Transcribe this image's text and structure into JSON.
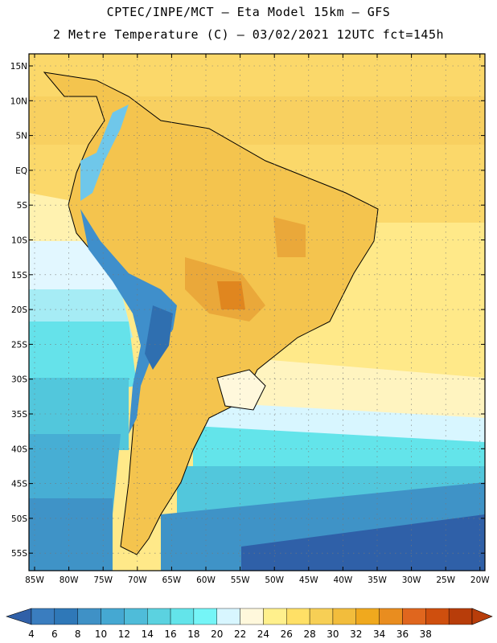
{
  "header": {
    "line1": "CPTEC/INPE/MCT –  Eta Model 15km – GFS",
    "line2": "2 Metre Temperature (C) – 03/02/2021 12UTC fct=145h"
  },
  "map": {
    "lat_labels": [
      "15N",
      "10N",
      "5N",
      "EQ",
      "5S",
      "10S",
      "15S",
      "20S",
      "25S",
      "30S",
      "35S",
      "40S",
      "45S",
      "50S",
      "55S"
    ],
    "lon_labels": [
      "85W",
      "80W",
      "75W",
      "70W",
      "65W",
      "60W",
      "55W",
      "50W",
      "45W",
      "40W",
      "35W",
      "30W",
      "25W",
      "20W"
    ]
  },
  "colorbar": {
    "labels": [
      "4",
      "6",
      "8",
      "10",
      "12",
      "14",
      "16",
      "18",
      "20",
      "22",
      "24",
      "26",
      "28",
      "30",
      "32",
      "34",
      "36",
      "38"
    ],
    "colors": [
      "#3a7dbf",
      "#2f78b8",
      "#3f91c6",
      "#45a8d2",
      "#4fbcd9",
      "#5bd2e0",
      "#63e4ea",
      "#75f5f7",
      "#d8f6ff",
      "#fff8dc",
      "#fff08c",
      "#ffe066",
      "#f7cf55",
      "#f2bd3c",
      "#f0a91e",
      "#e98d1f",
      "#e0661e",
      "#cf4f0e",
      "#b83d0a"
    ],
    "low_color": "#3060a8",
    "high_color": "#b83d0a"
  }
}
